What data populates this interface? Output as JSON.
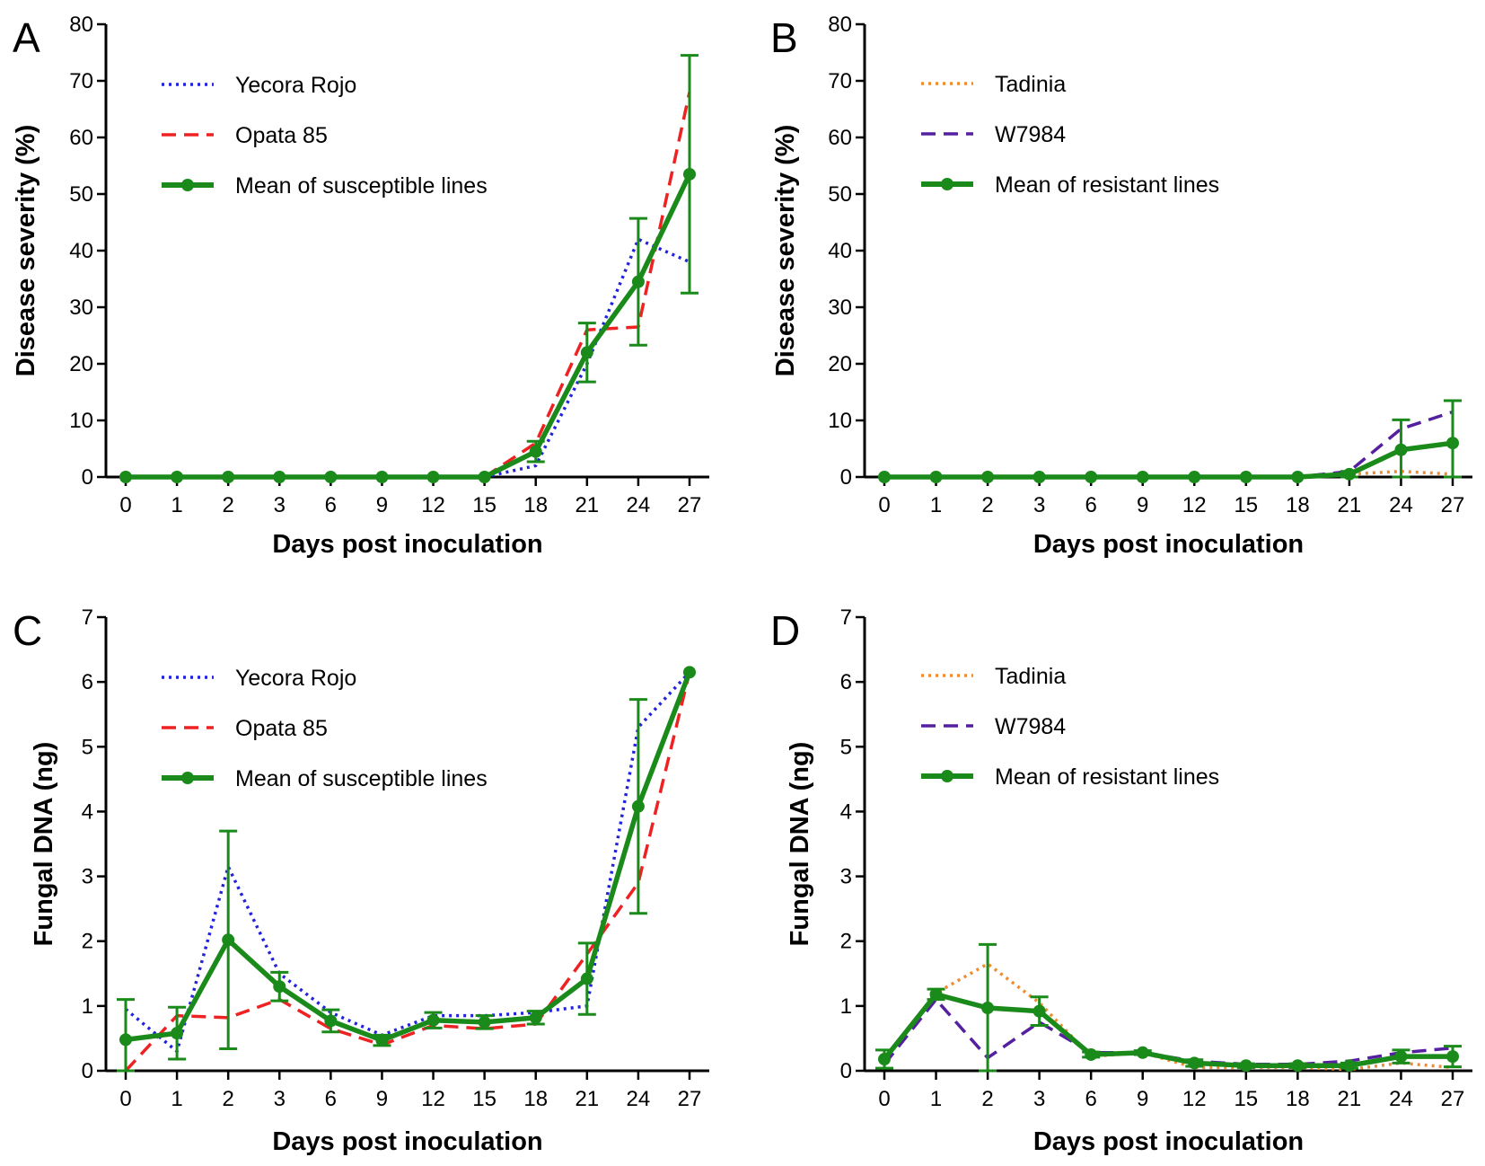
{
  "colors": {
    "yecora": "#2222dd",
    "opata": "#ee2222",
    "tadinia": "#f08c30",
    "w7984": "#5520a0",
    "mean": "#1a8a1a",
    "axis": "#000000"
  },
  "chart_data": [
    {
      "type": "line",
      "panel": "A",
      "xlabel": "Days post inoculation",
      "ylabel": "Disease severity (%)",
      "categories": [
        "0",
        "1",
        "2",
        "3",
        "6",
        "9",
        "12",
        "15",
        "18",
        "21",
        "24",
        "27"
      ],
      "ylim": [
        0,
        80
      ],
      "yticks": [
        "0",
        "10",
        "20",
        "30",
        "40",
        "50",
        "60",
        "70",
        "80"
      ],
      "legend_position": "top-left",
      "series": [
        {
          "name": "Yecora Rojo",
          "style": "dotted",
          "color_key": "yecora",
          "values": [
            0,
            0,
            0,
            0,
            0,
            0,
            0,
            0,
            2,
            20,
            42,
            38
          ]
        },
        {
          "name": "Opata 85",
          "style": "dashed",
          "color_key": "opata",
          "values": [
            0,
            0,
            0,
            0,
            0,
            0,
            0,
            0,
            6,
            26,
            26.5,
            68
          ]
        },
        {
          "name": "Mean of susceptible lines",
          "style": "solid-marker",
          "color_key": "mean",
          "values": [
            0,
            0,
            0,
            0,
            0,
            0,
            0,
            0,
            4.5,
            22,
            34.5,
            53.5
          ],
          "errors": [
            0,
            0,
            0,
            0,
            0,
            0,
            0,
            0,
            1.8,
            5.2,
            11.2,
            21
          ]
        }
      ]
    },
    {
      "type": "line",
      "panel": "B",
      "xlabel": "Days post inoculation",
      "ylabel": "Disease severity (%)",
      "categories": [
        "0",
        "1",
        "2",
        "3",
        "6",
        "9",
        "12",
        "15",
        "18",
        "21",
        "24",
        "27"
      ],
      "ylim": [
        0,
        80
      ],
      "yticks": [
        "0",
        "10",
        "20",
        "30",
        "40",
        "50",
        "60",
        "70",
        "80"
      ],
      "legend_position": "top-left",
      "series": [
        {
          "name": "Tadinia",
          "style": "dotted",
          "color_key": "tadinia",
          "values": [
            0,
            0,
            0,
            0,
            0,
            0,
            0,
            0,
            0,
            0.5,
            1,
            0.5
          ]
        },
        {
          "name": "W7984",
          "style": "dashed",
          "color_key": "w7984",
          "values": [
            0,
            0,
            0,
            0,
            0,
            0,
            0,
            0,
            0,
            1,
            8.5,
            11.5
          ]
        },
        {
          "name": "Mean of resistant lines",
          "style": "solid-marker",
          "color_key": "mean",
          "values": [
            0,
            0,
            0,
            0,
            0,
            0,
            0,
            0,
            0,
            0.5,
            4.8,
            6
          ],
          "errors": [
            0,
            0,
            0,
            0,
            0,
            0,
            0,
            0,
            0,
            0.5,
            5.3,
            7.5
          ]
        }
      ]
    },
    {
      "type": "line",
      "panel": "C",
      "xlabel": "Days post inoculation",
      "ylabel": "Fungal DNA (ng)",
      "categories": [
        "0",
        "1",
        "2",
        "3",
        "6",
        "9",
        "12",
        "15",
        "18",
        "21",
        "24",
        "27"
      ],
      "ylim": [
        0,
        7
      ],
      "yticks": [
        "0",
        "1",
        "2",
        "3",
        "4",
        "5",
        "6",
        "7"
      ],
      "legend_position": "top-left",
      "series": [
        {
          "name": "Yecora Rojo",
          "style": "dotted",
          "color_key": "yecora",
          "values": [
            0.95,
            0.3,
            3.15,
            1.5,
            0.9,
            0.55,
            0.85,
            0.85,
            0.9,
            1.0,
            5.3,
            6.15
          ]
        },
        {
          "name": "Opata 85",
          "style": "dashed",
          "color_key": "opata",
          "values": [
            0,
            0.85,
            0.82,
            1.1,
            0.65,
            0.4,
            0.7,
            0.65,
            0.72,
            1.8,
            2.9,
            6.15
          ]
        },
        {
          "name": "Mean of susceptible lines",
          "style": "solid-marker",
          "color_key": "mean",
          "values": [
            0.48,
            0.58,
            2.02,
            1.3,
            0.77,
            0.47,
            0.78,
            0.75,
            0.82,
            1.42,
            4.08,
            6.15
          ],
          "errors": [
            0.62,
            0.4,
            1.68,
            0.22,
            0.17,
            0.08,
            0.12,
            0.1,
            0.1,
            0.55,
            1.65,
            0
          ]
        }
      ]
    },
    {
      "type": "line",
      "panel": "D",
      "xlabel": "Days post inoculation",
      "ylabel": "Fungal DNA (ng)",
      "categories": [
        "0",
        "1",
        "2",
        "3",
        "6",
        "9",
        "12",
        "15",
        "18",
        "21",
        "24",
        "27"
      ],
      "ylim": [
        0,
        7
      ],
      "yticks": [
        "0",
        "1",
        "2",
        "3",
        "4",
        "5",
        "6",
        "7"
      ],
      "legend_position": "top-left",
      "series": [
        {
          "name": "Tadinia",
          "style": "dotted",
          "color_key": "tadinia",
          "values": [
            0.2,
            1.2,
            1.65,
            1.05,
            0.22,
            0.28,
            0.05,
            0.05,
            0.05,
            0.02,
            0.12,
            0.05
          ]
        },
        {
          "name": "W7984",
          "style": "dashed",
          "color_key": "w7984",
          "values": [
            0.1,
            1.1,
            0.2,
            0.75,
            0.28,
            0.28,
            0.15,
            0.1,
            0.1,
            0.15,
            0.28,
            0.35
          ]
        },
        {
          "name": "Mean of resistant lines",
          "style": "solid-marker",
          "color_key": "mean",
          "values": [
            0.18,
            1.18,
            0.97,
            0.92,
            0.25,
            0.28,
            0.12,
            0.08,
            0.08,
            0.08,
            0.22,
            0.22
          ],
          "errors": [
            0.14,
            0.08,
            0.98,
            0.22,
            0.04,
            0.03,
            0.05,
            0.03,
            0.03,
            0.04,
            0.1,
            0.16
          ]
        }
      ]
    }
  ]
}
